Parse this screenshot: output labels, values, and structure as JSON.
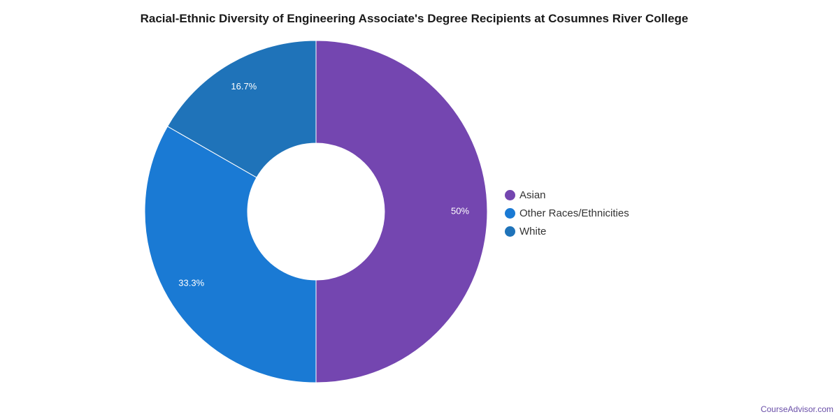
{
  "chart_data": {
    "type": "pie",
    "variant": "donut",
    "title": "Racial-Ethnic Diversity of Engineering Associate's Degree Recipients at Cosumnes River College",
    "slices": [
      {
        "label": "Asian",
        "value": 50,
        "display": "50%",
        "color": "#7446b0"
      },
      {
        "label": "Other Races/Ethnicities",
        "value": 33.3,
        "display": "33.3%",
        "color": "#1a7ad4"
      },
      {
        "label": "White",
        "value": 16.7,
        "display": "16.7%",
        "color": "#1f73b9"
      }
    ],
    "legend_position": "right"
  },
  "footer": {
    "brand": "CourseAdvisor.com"
  }
}
